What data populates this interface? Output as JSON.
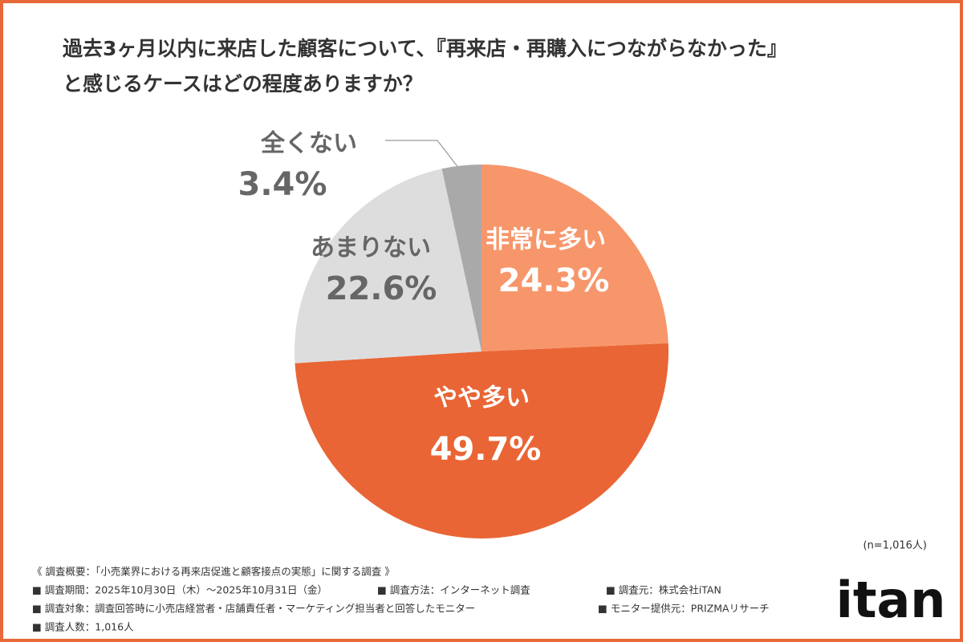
{
  "chart_data": {
    "type": "pie",
    "title": [
      "過去3ヶ月以内に来店した顧客について、『再来店・再購入につながらなかった』",
      "と感じるケースはどの程度ありますか？"
    ],
    "categories": [
      "非常に多い",
      "やや多い",
      "あまりない",
      "全くない"
    ],
    "values": [
      24.3,
      49.7,
      22.6,
      3.4
    ],
    "value_labels": [
      "24.3%",
      "49.7%",
      "22.6%",
      "3.4%"
    ],
    "colors": [
      "#f7966b",
      "#e96535",
      "#dddddd",
      "#a9a9a9"
    ],
    "label_colors": [
      "#ffffff",
      "#ffffff",
      "#666666",
      "#666666"
    ],
    "note": "(n=1,016人)"
  },
  "footer": {
    "rows": [
      [
        "《 調査概要：「小売業界における再来店促進と顧客接点の実態」に関する調査 》"
      ],
      [
        "■ 調査期間：2025年10月30日（木）〜2025年10月31日（金）",
        "■ 調査方法：インターネット調査",
        "■ 調査元：株式会社iTAN"
      ],
      [
        "■ 調査対象：調査回答時に小売店経営者・店舗責任者・マーケティング担当者と回答したモニター",
        "■ モニター提供元：PRIZMAリサーチ"
      ],
      [
        "■ 調査人数：1,016人"
      ]
    ],
    "logo": "itan"
  }
}
